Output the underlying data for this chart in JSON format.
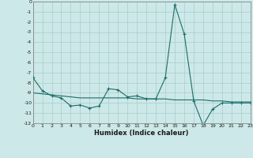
{
  "xlabel": "Humidex (Indice chaleur)",
  "ylabel": "",
  "background_color": "#cde8e8",
  "grid_color": "#aacccc",
  "line_color": "#1a6e6a",
  "xlim": [
    0,
    23
  ],
  "ylim": [
    -12,
    0
  ],
  "x": [
    0,
    1,
    2,
    3,
    4,
    5,
    6,
    7,
    8,
    9,
    10,
    11,
    12,
    13,
    14,
    15,
    16,
    17,
    18,
    19,
    20,
    21,
    22,
    23
  ],
  "y_main": [
    -7.5,
    -8.8,
    -9.3,
    -9.5,
    -10.3,
    -10.2,
    -10.5,
    -10.3,
    -8.6,
    -8.7,
    -9.4,
    -9.3,
    -9.6,
    -9.6,
    -7.5,
    -0.3,
    -3.2,
    -9.8,
    -12.2,
    -10.6,
    -10.0,
    -10.0,
    -10.0,
    -10.0
  ],
  "y_trend": [
    -9.0,
    -9.1,
    -9.2,
    -9.3,
    -9.4,
    -9.5,
    -9.5,
    -9.5,
    -9.5,
    -9.5,
    -9.5,
    -9.6,
    -9.6,
    -9.6,
    -9.6,
    -9.7,
    -9.7,
    -9.7,
    -9.7,
    -9.8,
    -9.8,
    -9.9,
    -9.9,
    -9.9
  ],
  "xtick_labels": [
    "0",
    "1",
    "2",
    "3",
    "4",
    "5",
    "6",
    "7",
    "8",
    "9",
    "10",
    "11",
    "12",
    "13",
    "14",
    "15",
    "16",
    "17",
    "18",
    "19",
    "20",
    "21",
    "22",
    "23"
  ],
  "ytick_labels": [
    "0",
    "-1",
    "-2",
    "-3",
    "-4",
    "-5",
    "-6",
    "-7",
    "-8",
    "-9",
    "-10",
    "-11",
    "-12"
  ],
  "ytick_vals": [
    0,
    -1,
    -2,
    -3,
    -4,
    -5,
    -6,
    -7,
    -8,
    -9,
    -10,
    -11,
    -12
  ]
}
